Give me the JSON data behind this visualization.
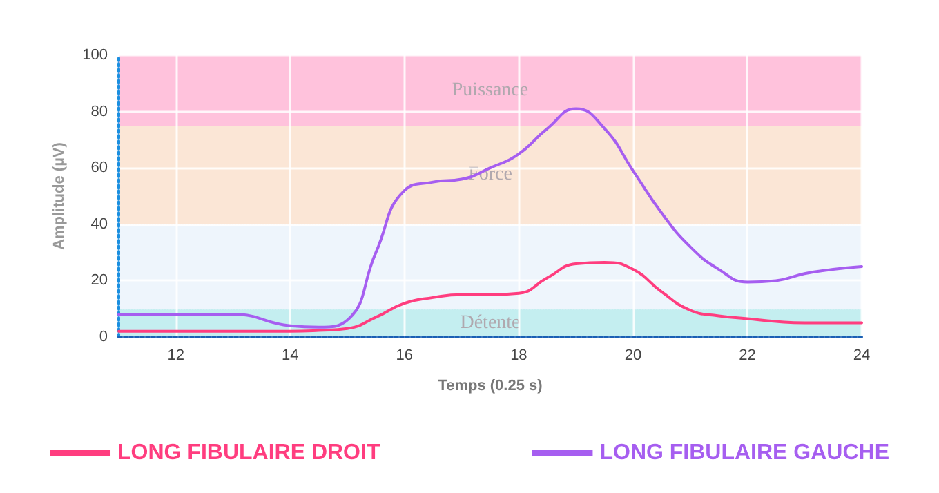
{
  "chart_data": {
    "type": "line",
    "xlabel": "Temps (0.25 s)",
    "ylabel": "Amplitude (µV)",
    "x": [
      11,
      12,
      13,
      14,
      14.5,
      15,
      15.5,
      16,
      16.5,
      17,
      17.5,
      18,
      18.5,
      19,
      19.5,
      20,
      20.5,
      21,
      21.5,
      22,
      22.5,
      23,
      23.5,
      24
    ],
    "series": [
      {
        "name": "LONG FIBULAIRE DROIT",
        "color": "#ff3d7f",
        "values": [
          2,
          2,
          2,
          2,
          2.3,
          3,
          7,
          12,
          14,
          15,
          15,
          15.5,
          21,
          26,
          26.5,
          24,
          16,
          9.5,
          7.5,
          6.5,
          5.5,
          5,
          5,
          5
        ]
      },
      {
        "name": "LONG FIBULAIRE GAUCHE",
        "color": "#a65ef0",
        "values": [
          8,
          8,
          8,
          4,
          3.5,
          6,
          30,
          52,
          55,
          56,
          60,
          65,
          74,
          81,
          74,
          59,
          44,
          32,
          24,
          19.5,
          20,
          22.5,
          24,
          25
        ]
      }
    ],
    "xlim": [
      11,
      24
    ],
    "xticks": [
      12,
      14,
      16,
      18,
      20,
      22,
      24
    ],
    "ylim": [
      0,
      100
    ],
    "yticks": [
      0,
      20,
      40,
      60,
      80,
      100
    ],
    "bands": [
      {
        "axis": "y",
        "from": 0,
        "to": 10,
        "label": "Détente",
        "color": "#c4eef0"
      },
      {
        "axis": "y",
        "from": 10,
        "to": 40,
        "label": null,
        "color": "#eef5fc"
      },
      {
        "axis": "y",
        "from": 40,
        "to": 75,
        "label": "Force",
        "color": "#fbe6d6"
      },
      {
        "axis": "y",
        "from": 75,
        "to": 100,
        "label": "Puissance",
        "color": "#ffc2dc"
      }
    ],
    "grid": true,
    "legend": "bottom",
    "marker": "none",
    "line_style": "solid"
  }
}
